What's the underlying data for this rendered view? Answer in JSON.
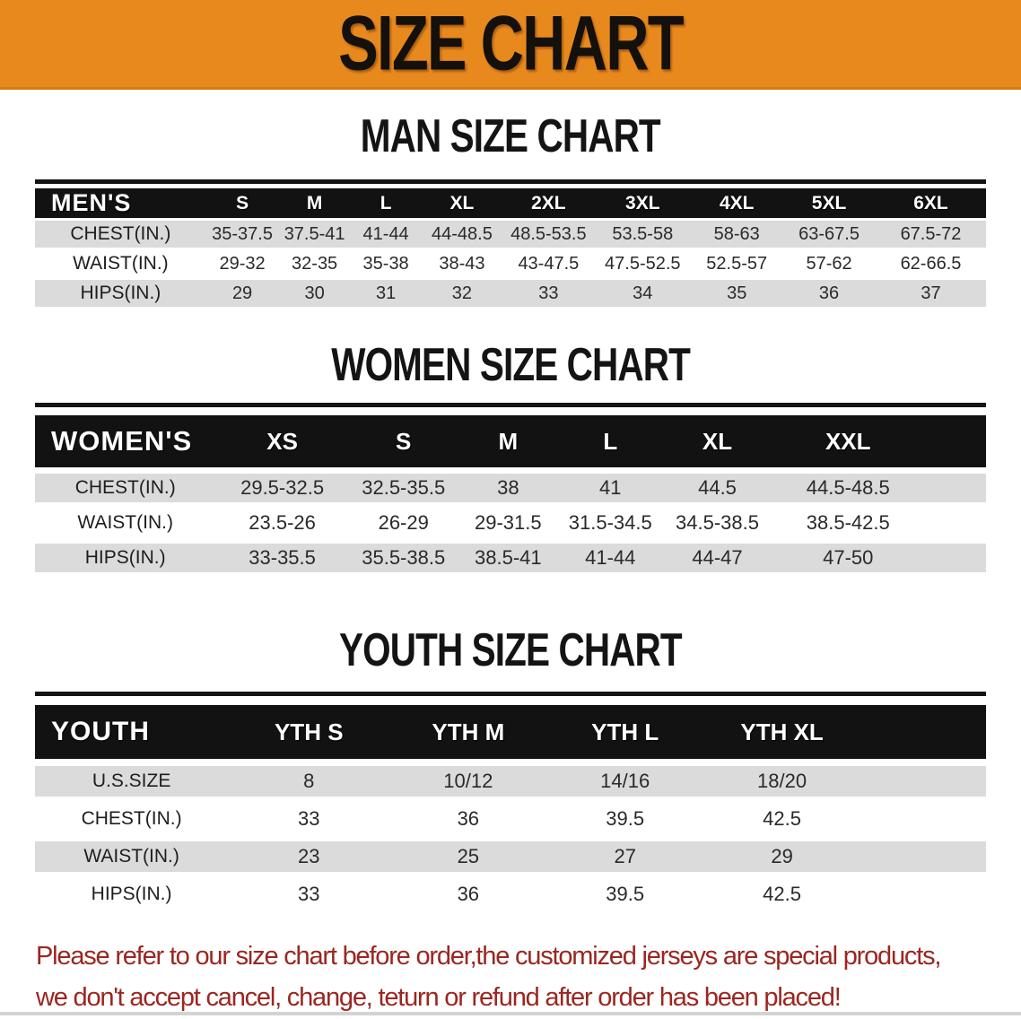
{
  "banner": {
    "title": "SIZE CHART",
    "bg_color": "#E8891E"
  },
  "colors": {
    "header_bar": "#121212",
    "row_gray": "#dbdbdb",
    "footer_red": "#9b2620"
  },
  "sections": [
    {
      "heading": "MAN SIZE CHART",
      "table": {
        "header_label": "MEN'S",
        "columns": [
          "S",
          "M",
          "L",
          "XL",
          "2XL",
          "3XL",
          "4XL",
          "5XL",
          "6XL"
        ],
        "rows": [
          {
            "label": "CHEST(IN.)",
            "values": [
              "35-37.5",
              "37.5-41",
              "41-44",
              "44-48.5",
              "48.5-53.5",
              "53.5-58",
              "58-63",
              "63-67.5",
              "67.5-72"
            ]
          },
          {
            "label": "WAIST(IN.)",
            "values": [
              "29-32",
              "32-35",
              "35-38",
              "38-43",
              "43-47.5",
              "47.5-52.5",
              "52.5-57",
              "57-62",
              "62-66.5"
            ]
          },
          {
            "label": "HIPS(IN.)",
            "values": [
              "29",
              "30",
              "31",
              "32",
              "33",
              "34",
              "35",
              "36",
              "37"
            ]
          }
        ]
      }
    },
    {
      "heading": "WOMEN SIZE CHART",
      "table": {
        "header_label": "WOMEN'S",
        "columns": [
          "XS",
          "S",
          "M",
          "L",
          "XL",
          "XXL"
        ],
        "trailing_spacer": true,
        "rows": [
          {
            "label": "CHEST(IN.)",
            "values": [
              "29.5-32.5",
              "32.5-35.5",
              "38",
              "41",
              "44.5",
              "44.5-48.5"
            ]
          },
          {
            "label": "WAIST(IN.)",
            "values": [
              "23.5-26",
              "26-29",
              "29-31.5",
              "31.5-34.5",
              "34.5-38.5",
              "38.5-42.5"
            ]
          },
          {
            "label": "HIPS(IN.)",
            "values": [
              "33-35.5",
              "35.5-38.5",
              "38.5-41",
              "41-44",
              "44-47",
              "47-50"
            ]
          }
        ]
      }
    },
    {
      "heading": "YOUTH SIZE CHART",
      "table": {
        "header_label": "YOUTH",
        "columns": [
          "YTH S",
          "YTH M",
          "YTH L",
          "YTH XL"
        ],
        "trailing_spacer": true,
        "rows": [
          {
            "label": "U.S.SIZE",
            "values": [
              "8",
              "10/12",
              "14/16",
              "18/20"
            ]
          },
          {
            "label": "CHEST(IN.)",
            "values": [
              "33",
              "36",
              "39.5",
              "42.5"
            ]
          },
          {
            "label": "WAIST(IN.)",
            "values": [
              "23",
              "25",
              "27",
              "29"
            ]
          },
          {
            "label": "HIPS(IN.)",
            "values": [
              "33",
              "36",
              "39.5",
              "42.5"
            ]
          }
        ]
      }
    }
  ],
  "footer": {
    "line1": "Please refer to our size chart before order,the customized jerseys are special products,",
    "line2": "we don't accept cancel, change, teturn or refund after order has been placed!"
  }
}
